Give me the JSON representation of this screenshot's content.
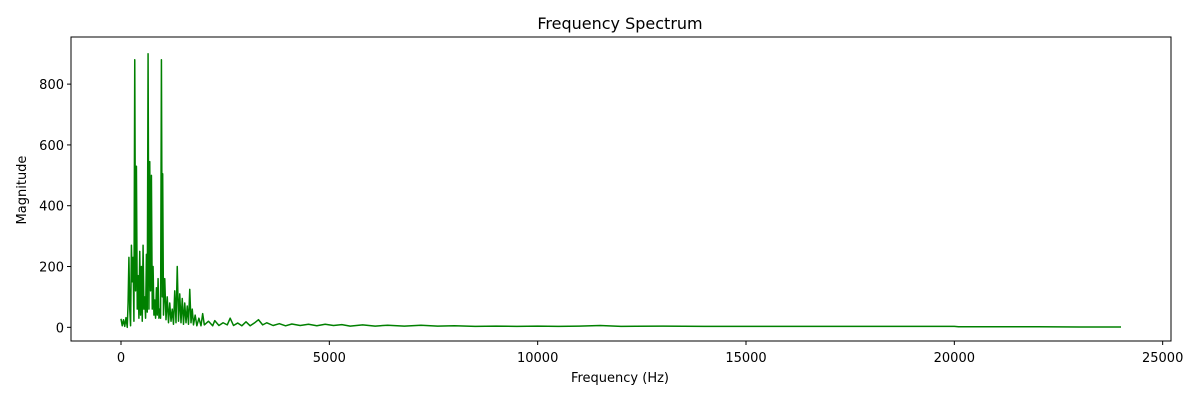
{
  "chart_data": {
    "type": "line",
    "title": "Frequency Spectrum",
    "xlabel": "Frequency (Hz)",
    "ylabel": "Magnitude",
    "xlim": [
      -1200,
      25200
    ],
    "ylim": [
      -45,
      955
    ],
    "xticks": [
      0,
      5000,
      10000,
      15000,
      20000,
      25000
    ],
    "xtick_labels": [
      "0",
      "5000",
      "10000",
      "15000",
      "20000",
      "25000"
    ],
    "yticks": [
      0,
      200,
      400,
      600,
      800
    ],
    "ytick_labels": [
      "0",
      "200",
      "400",
      "600",
      "800"
    ],
    "grid": false,
    "legend": "none",
    "series": [
      {
        "color": "#008000",
        "points": [
          [
            0,
            28
          ],
          [
            30,
            5
          ],
          [
            60,
            25
          ],
          [
            90,
            3
          ],
          [
            120,
            32
          ],
          [
            150,
            0
          ],
          [
            170,
            80
          ],
          [
            190,
            230
          ],
          [
            210,
            60
          ],
          [
            230,
            5
          ],
          [
            250,
            270
          ],
          [
            270,
            150
          ],
          [
            290,
            230
          ],
          [
            310,
            20
          ],
          [
            330,
            880
          ],
          [
            350,
            120
          ],
          [
            370,
            530
          ],
          [
            390,
            60
          ],
          [
            410,
            170
          ],
          [
            430,
            30
          ],
          [
            450,
            250
          ],
          [
            470,
            40
          ],
          [
            490,
            200
          ],
          [
            510,
            20
          ],
          [
            530,
            270
          ],
          [
            550,
            60
          ],
          [
            570,
            100
          ],
          [
            590,
            30
          ],
          [
            610,
            240
          ],
          [
            630,
            50
          ],
          [
            650,
            900
          ],
          [
            670,
            60
          ],
          [
            690,
            545
          ],
          [
            710,
            120
          ],
          [
            730,
            500
          ],
          [
            750,
            60
          ],
          [
            770,
            200
          ],
          [
            790,
            40
          ],
          [
            810,
            90
          ],
          [
            830,
            30
          ],
          [
            850,
            130
          ],
          [
            870,
            40
          ],
          [
            890,
            160
          ],
          [
            910,
            30
          ],
          [
            930,
            60
          ],
          [
            950,
            30
          ],
          [
            970,
            880
          ],
          [
            990,
            100
          ],
          [
            1000,
            505
          ],
          [
            1020,
            40
          ],
          [
            1050,
            160
          ],
          [
            1080,
            25
          ],
          [
            1110,
            100
          ],
          [
            1140,
            15
          ],
          [
            1170,
            80
          ],
          [
            1200,
            20
          ],
          [
            1230,
            60
          ],
          [
            1260,
            10
          ],
          [
            1290,
            120
          ],
          [
            1320,
            15
          ],
          [
            1350,
            200
          ],
          [
            1380,
            20
          ],
          [
            1410,
            110
          ],
          [
            1440,
            15
          ],
          [
            1470,
            95
          ],
          [
            1500,
            10
          ],
          [
            1530,
            80
          ],
          [
            1560,
            15
          ],
          [
            1590,
            70
          ],
          [
            1620,
            10
          ],
          [
            1650,
            125
          ],
          [
            1680,
            15
          ],
          [
            1710,
            60
          ],
          [
            1740,
            8
          ],
          [
            1780,
            40
          ],
          [
            1820,
            5
          ],
          [
            1870,
            30
          ],
          [
            1920,
            5
          ],
          [
            1960,
            45
          ],
          [
            2000,
            8
          ],
          [
            2100,
            20
          ],
          [
            2200,
            5
          ],
          [
            2250,
            22
          ],
          [
            2350,
            6
          ],
          [
            2450,
            15
          ],
          [
            2550,
            8
          ],
          [
            2620,
            30
          ],
          [
            2700,
            6
          ],
          [
            2800,
            14
          ],
          [
            2900,
            5
          ],
          [
            3000,
            18
          ],
          [
            3100,
            5
          ],
          [
            3200,
            14
          ],
          [
            3300,
            25
          ],
          [
            3400,
            8
          ],
          [
            3500,
            15
          ],
          [
            3650,
            6
          ],
          [
            3800,
            12
          ],
          [
            3950,
            5
          ],
          [
            4100,
            11
          ],
          [
            4300,
            6
          ],
          [
            4500,
            10
          ],
          [
            4700,
            5
          ],
          [
            4900,
            10
          ],
          [
            5100,
            6
          ],
          [
            5300,
            9
          ],
          [
            5500,
            4
          ],
          [
            5800,
            8
          ],
          [
            6100,
            4
          ],
          [
            6400,
            7
          ],
          [
            6800,
            4
          ],
          [
            7200,
            7
          ],
          [
            7600,
            4
          ],
          [
            8000,
            5
          ],
          [
            8500,
            3
          ],
          [
            9000,
            4
          ],
          [
            9500,
            3
          ],
          [
            10000,
            4
          ],
          [
            10500,
            3
          ],
          [
            11000,
            4
          ],
          [
            11500,
            6
          ],
          [
            12000,
            3
          ],
          [
            13000,
            4
          ],
          [
            14000,
            3
          ],
          [
            15000,
            3
          ],
          [
            16000,
            3
          ],
          [
            17000,
            3
          ],
          [
            18000,
            3
          ],
          [
            19000,
            3
          ],
          [
            20000,
            3
          ],
          [
            20100,
            2
          ],
          [
            21000,
            2
          ],
          [
            22000,
            2
          ],
          [
            23000,
            1
          ],
          [
            24000,
            1
          ]
        ]
      }
    ]
  }
}
